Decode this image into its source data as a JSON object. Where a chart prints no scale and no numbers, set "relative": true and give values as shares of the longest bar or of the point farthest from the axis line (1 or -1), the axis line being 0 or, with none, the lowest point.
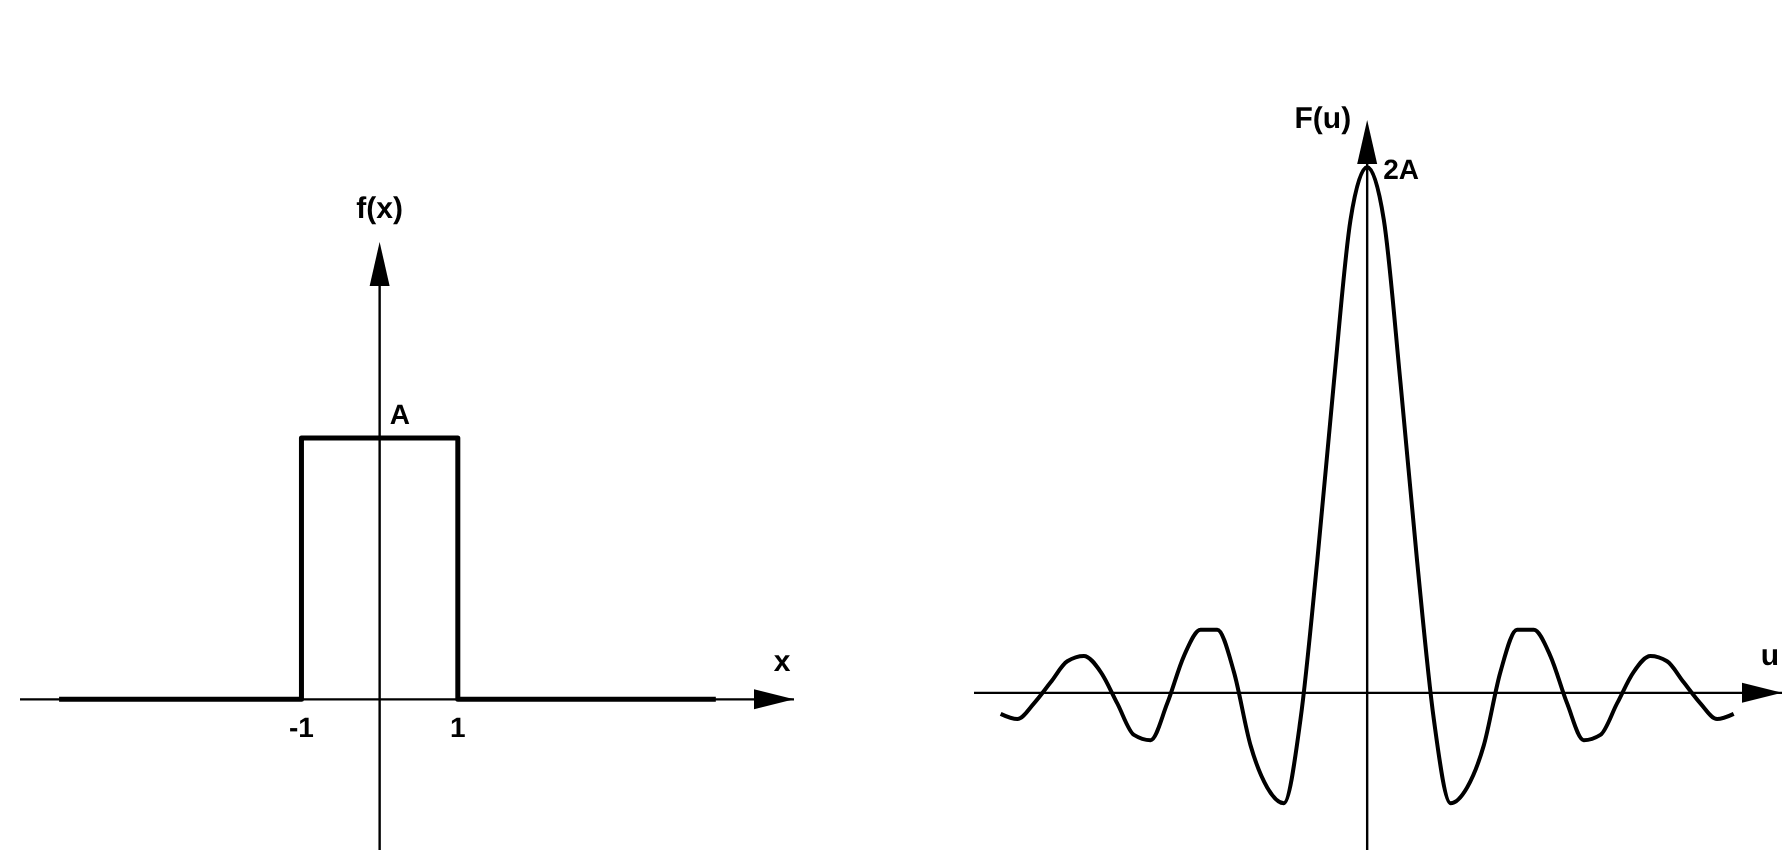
{
  "chart_data": [
    {
      "type": "line",
      "xlabel": "x",
      "ylabel": "f(x)",
      "relative": true,
      "x": [
        -4.1,
        -1,
        -1,
        1,
        1,
        4.3
      ],
      "values": [
        0,
        0,
        1,
        1,
        0,
        0
      ],
      "color": "#000000",
      "xlim": [
        -4.6,
        5.3
      ],
      "xticks": [
        -1,
        1
      ],
      "tick_labels": "x",
      "annotations": [
        {
          "text": "A",
          "x": 0,
          "y": 1
        }
      ]
    },
    {
      "type": "line",
      "xlabel": "u",
      "ylabel": "F(u)",
      "relative": true,
      "categories": [
        null,
        null,
        null,
        null,
        null,
        null,
        null,
        null,
        null,
        null,
        null,
        null,
        null,
        null,
        null,
        null,
        null,
        null,
        null,
        null,
        null,
        null,
        null,
        null,
        null,
        null,
        null,
        null,
        null,
        null,
        null,
        null,
        null,
        null,
        null,
        null,
        null,
        null,
        null,
        null,
        null,
        null,
        null,
        null,
        null
      ],
      "values": [
        -0.04,
        -0.05,
        -0.02,
        0.02,
        0.06,
        0.07,
        0.04,
        -0.02,
        -0.08,
        -0.09,
        -0.02,
        0.07,
        0.12,
        0.12,
        0.04,
        -0.1,
        -0.18,
        -0.21,
        -0.05,
        0.25,
        0.59,
        0.9,
        1,
        0.9,
        0.59,
        0.25,
        -0.05,
        -0.21,
        -0.18,
        -0.1,
        0.04,
        0.12,
        0.12,
        0.07,
        -0.02,
        -0.09,
        -0.08,
        -0.02,
        0.04,
        0.07,
        0.06,
        0.02,
        -0.02,
        -0.05,
        -0.04
      ],
      "color": "#000000",
      "tick_labels": false,
      "annotations": [
        "2A"
      ]
    }
  ]
}
